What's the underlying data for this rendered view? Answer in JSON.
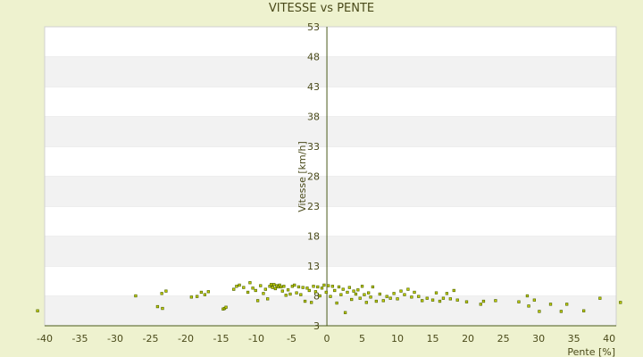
{
  "chart_data": {
    "type": "scatter",
    "title": "VITESSE vs PENTE",
    "xlabel": "Pente [%]",
    "ylabel": "Vitesse [km/h]",
    "xlim": [
      -40,
      41
    ],
    "ylim": [
      3,
      53
    ],
    "x_ticks": [
      -40,
      -35,
      -30,
      -25,
      -20,
      -15,
      -10,
      -5,
      0,
      5,
      10,
      15,
      20,
      25,
      30,
      35,
      40
    ],
    "y_ticks": [
      3,
      8,
      13,
      18,
      23,
      28,
      33,
      38,
      43,
      48,
      53
    ],
    "grid": "horizontal bands",
    "legend": "none",
    "colors": {
      "page_background": "#eef2cf",
      "plot_band_light": "#ffffff",
      "plot_band_dark": "#f2f2f2",
      "axis": "#4a5a1a",
      "point_fill": "#c8d200",
      "point_stroke": "#556b00",
      "text": "#4a4a1a"
    },
    "points": [
      [
        -41,
        5.5
      ],
      [
        -27.1,
        8.0
      ],
      [
        -24.0,
        6.2
      ],
      [
        -23.3,
        5.9
      ],
      [
        -23.4,
        8.4
      ],
      [
        -22.8,
        8.8
      ],
      [
        -19.2,
        7.8
      ],
      [
        -18.4,
        7.9
      ],
      [
        -17.8,
        8.6
      ],
      [
        -17.3,
        8.2
      ],
      [
        -16.8,
        8.7
      ],
      [
        -14.7,
        5.8
      ],
      [
        -14.5,
        5.9
      ],
      [
        -14.3,
        6.1
      ],
      [
        -13.2,
        9.1
      ],
      [
        -12.8,
        9.6
      ],
      [
        -12.4,
        9.8
      ],
      [
        -11.8,
        9.4
      ],
      [
        -11.2,
        8.6
      ],
      [
        -10.9,
        10.2
      ],
      [
        -10.5,
        9.3
      ],
      [
        -10.1,
        8.9
      ],
      [
        -9.8,
        7.2
      ],
      [
        -9.4,
        9.7
      ],
      [
        -9.0,
        8.4
      ],
      [
        -8.7,
        9.1
      ],
      [
        -8.4,
        7.5
      ],
      [
        -8.1,
        9.6
      ],
      [
        -7.9,
        9.9
      ],
      [
        -7.7,
        9.4
      ],
      [
        -7.5,
        9.9
      ],
      [
        -7.3,
        9.2
      ],
      [
        -7.1,
        9.7
      ],
      [
        -6.9,
        9.5
      ],
      [
        -6.7,
        9.8
      ],
      [
        -6.5,
        9.5
      ],
      [
        -6.3,
        8.8
      ],
      [
        -6.1,
        9.6
      ],
      [
        -5.8,
        8.1
      ],
      [
        -5.5,
        9.0
      ],
      [
        -5.2,
        8.3
      ],
      [
        -4.9,
        9.6
      ],
      [
        -4.6,
        9.8
      ],
      [
        -4.3,
        8.5
      ],
      [
        -4.0,
        9.5
      ],
      [
        -3.7,
        8.2
      ],
      [
        -3.4,
        9.4
      ],
      [
        -3.1,
        7.1
      ],
      [
        -2.8,
        9.3
      ],
      [
        -2.5,
        8.9
      ],
      [
        -2.2,
        6.9
      ],
      [
        -1.9,
        9.6
      ],
      [
        -1.6,
        8.7
      ],
      [
        -1.3,
        9.5
      ],
      [
        -1.0,
        8.0
      ],
      [
        -0.7,
        9.3
      ],
      [
        -0.4,
        9.8
      ],
      [
        -0.1,
        8.6
      ],
      [
        0.2,
        9.7
      ],
      [
        0.5,
        7.9
      ],
      [
        0.8,
        9.6
      ],
      [
        1.1,
        8.9
      ],
      [
        1.4,
        6.8
      ],
      [
        1.7,
        9.5
      ],
      [
        2.0,
        8.2
      ],
      [
        2.3,
        9.1
      ],
      [
        2.6,
        5.2
      ],
      [
        2.9,
        8.6
      ],
      [
        3.2,
        9.4
      ],
      [
        3.5,
        7.4
      ],
      [
        3.8,
        8.8
      ],
      [
        4.1,
        8.3
      ],
      [
        4.4,
        9.0
      ],
      [
        4.7,
        7.6
      ],
      [
        5.0,
        9.6
      ],
      [
        5.3,
        8.2
      ],
      [
        5.6,
        6.9
      ],
      [
        5.9,
        8.5
      ],
      [
        6.2,
        7.8
      ],
      [
        6.5,
        9.5
      ],
      [
        7.0,
        7.1
      ],
      [
        7.5,
        8.3
      ],
      [
        8.0,
        7.2
      ],
      [
        8.5,
        7.9
      ],
      [
        9.0,
        7.6
      ],
      [
        9.5,
        8.4
      ],
      [
        10.0,
        7.5
      ],
      [
        10.5,
        8.8
      ],
      [
        11.0,
        8.2
      ],
      [
        11.5,
        9.1
      ],
      [
        12.0,
        7.8
      ],
      [
        12.4,
        8.6
      ],
      [
        13.0,
        7.9
      ],
      [
        13.5,
        7.2
      ],
      [
        14.2,
        7.6
      ],
      [
        15.0,
        7.3
      ],
      [
        15.5,
        8.5
      ],
      [
        16.0,
        7.1
      ],
      [
        16.5,
        7.6
      ],
      [
        17.0,
        8.4
      ],
      [
        17.5,
        7.5
      ],
      [
        18.0,
        8.9
      ],
      [
        18.5,
        7.3
      ],
      [
        19.8,
        7.0
      ],
      [
        21.8,
        6.6
      ],
      [
        22.2,
        7.1
      ],
      [
        23.9,
        7.2
      ],
      [
        27.2,
        7.0
      ],
      [
        28.4,
        8.0
      ],
      [
        28.6,
        6.3
      ],
      [
        29.4,
        7.3
      ],
      [
        30.1,
        5.4
      ],
      [
        31.7,
        6.6
      ],
      [
        33.2,
        5.4
      ],
      [
        34.0,
        6.6
      ],
      [
        36.4,
        5.5
      ],
      [
        38.7,
        7.6
      ],
      [
        41.6,
        6.9
      ]
    ]
  }
}
